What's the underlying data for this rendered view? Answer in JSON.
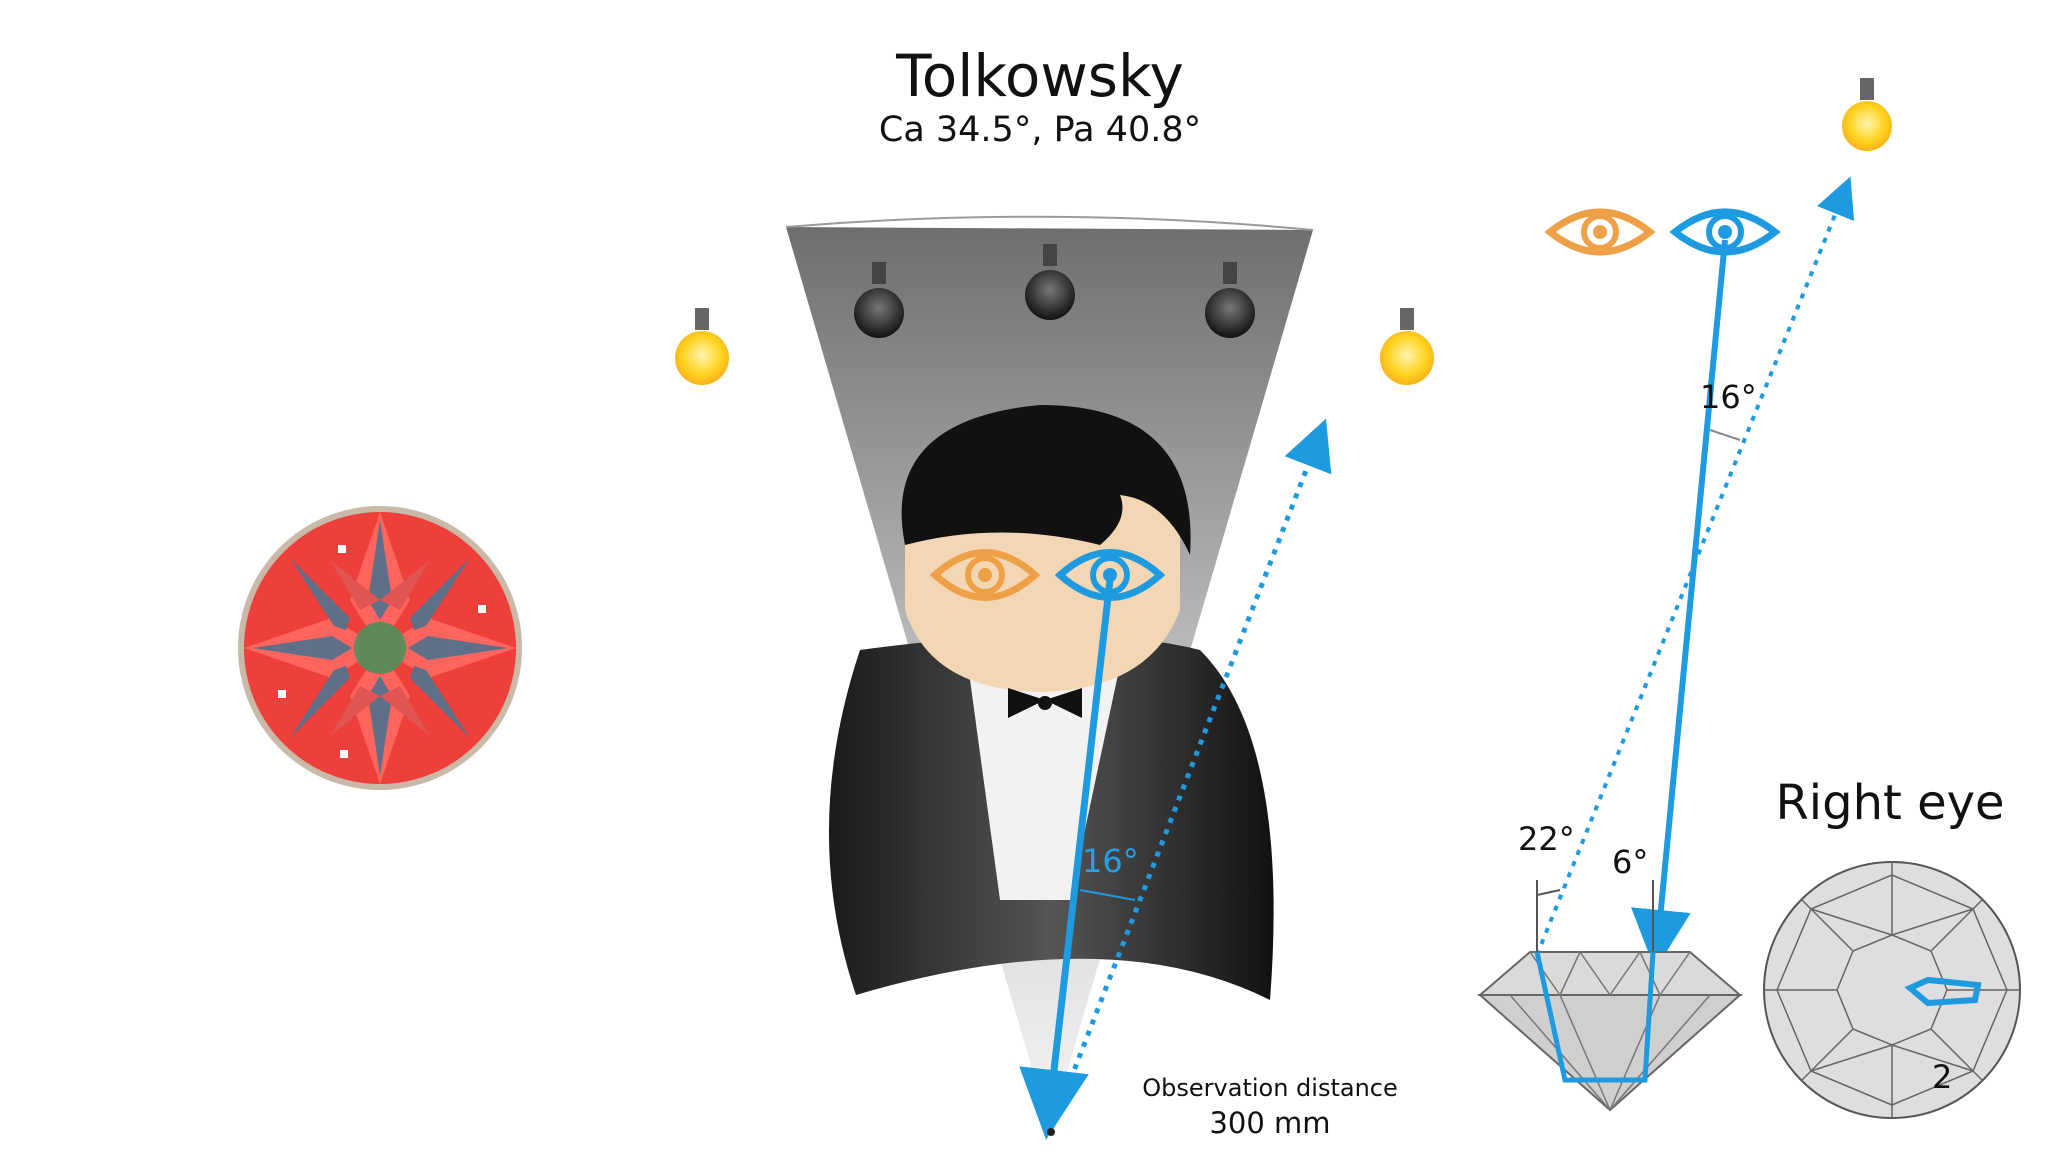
{
  "title": "Tolkowsky",
  "subtitle": "Ca 34.5°, Pa 40.8°",
  "observation": {
    "label": "Observation distance",
    "value": "300 mm"
  },
  "angles": {
    "left_diagram": "16°",
    "right_top": "16°",
    "right_bottom_left": "22°",
    "right_bottom_right": "6°"
  },
  "right_eye_label": "Right eye",
  "facet_number": "2",
  "colors": {
    "ray_blue": "#1e9be0",
    "left_eye_orange": "#eea046",
    "skin": "#f3d7b5",
    "asset_red": "#f0433f",
    "bulb_yellow": "#ffd21e"
  },
  "icons": [
    "light-bulb-icon",
    "eye-icon",
    "bow-tie-icon",
    "diamond-icon"
  ]
}
